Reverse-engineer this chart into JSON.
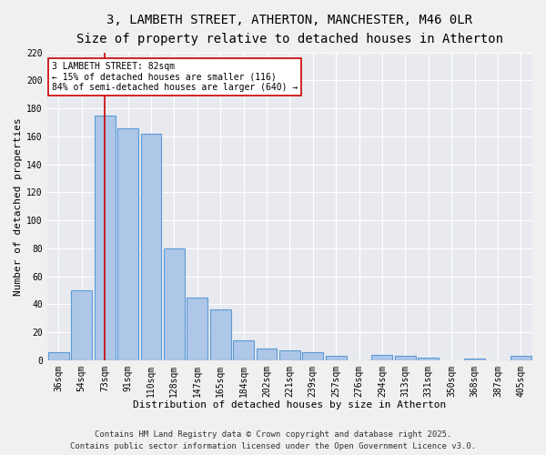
{
  "title": "3, LAMBETH STREET, ATHERTON, MANCHESTER, M46 0LR",
  "subtitle": "Size of property relative to detached houses in Atherton",
  "xlabel": "Distribution of detached houses by size in Atherton",
  "ylabel": "Number of detached properties",
  "categories": [
    "36sqm",
    "54sqm",
    "73sqm",
    "91sqm",
    "110sqm",
    "128sqm",
    "147sqm",
    "165sqm",
    "184sqm",
    "202sqm",
    "221sqm",
    "239sqm",
    "257sqm",
    "276sqm",
    "294sqm",
    "313sqm",
    "331sqm",
    "350sqm",
    "368sqm",
    "387sqm",
    "405sqm"
  ],
  "values": [
    6,
    50,
    175,
    166,
    162,
    80,
    45,
    36,
    14,
    8,
    7,
    6,
    3,
    0,
    4,
    3,
    2,
    0,
    1,
    0,
    3
  ],
  "bar_color": "#aec6e8",
  "bar_edge_color": "#5b9bd5",
  "bg_color": "#e8eaf0",
  "grid_color": "#ffffff",
  "annotation_text": "3 LAMBETH STREET: 82sqm\n← 15% of detached houses are smaller (116)\n84% of semi-detached houses are larger (640) →",
  "annotation_box_edge": "#cc0000",
  "vline_x": 2,
  "vline_color": "#cc0000",
  "ylim": [
    0,
    220
  ],
  "yticks": [
    0,
    20,
    40,
    60,
    80,
    100,
    120,
    140,
    160,
    180,
    200,
    220
  ],
  "footer1": "Contains HM Land Registry data © Crown copyright and database right 2025.",
  "footer2": "Contains public sector information licensed under the Open Government Licence v3.0.",
  "title_fontsize": 10,
  "subtitle_fontsize": 9,
  "axis_label_fontsize": 8,
  "tick_fontsize": 7,
  "annotation_fontsize": 7,
  "footer_fontsize": 6.5
}
